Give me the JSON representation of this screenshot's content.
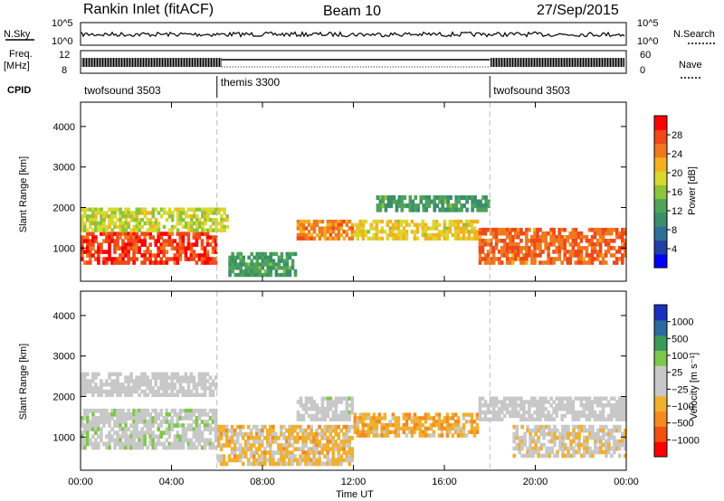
{
  "header": {
    "station": "Rankin Inlet (fitACF)",
    "beam": "Beam 10",
    "date": "27/Sep/2015"
  },
  "top_panels": {
    "nsky_label": "N.Sky",
    "nsky_ticks": [
      "10^5",
      "10^0"
    ],
    "nsearch_ticks": [
      "10^5",
      "10^0"
    ],
    "nsearch_label": "N.Search",
    "freq_label_line1": "Freq.",
    "freq_label_line2": "[MHz]",
    "freq_ticks": [
      "12",
      "8"
    ],
    "nave_ticks": [
      "60",
      "0"
    ],
    "nave_label": "Nave",
    "cpid_label": "CPID"
  },
  "modes": [
    {
      "name": "twofsound 3503",
      "start_hour": 0
    },
    {
      "name": "themis 3300",
      "start_hour": 6
    },
    {
      "name": "twofsound 3503",
      "start_hour": 18
    }
  ],
  "x_axis": {
    "label": "Time UT",
    "ticks": [
      "00:00",
      "04:00",
      "08:00",
      "12:00",
      "16:00",
      "20:00",
      "00:00"
    ],
    "range_hours": [
      0,
      24
    ]
  },
  "chart_data": [
    {
      "type": "heatmap",
      "title": "Power",
      "ylabel": "Slant Range [km]",
      "yticks": [
        "1000",
        "2000",
        "3000",
        "4000"
      ],
      "ylim": [
        180,
        4600
      ],
      "colorbar_label": "Power [dB]",
      "colorbar_ticks": [
        "28",
        "24",
        "20",
        "16",
        "12",
        "8",
        "4"
      ],
      "colorbar_range": [
        0,
        32
      ],
      "colors": [
        "#0000ff",
        "#2040a0",
        "#306e9a",
        "#3a8f6a",
        "#4fa35a",
        "#8cc43a",
        "#d8d830",
        "#f5b020",
        "#f07820",
        "#f04818",
        "#ff0000"
      ],
      "regions": [
        {
          "t": [
            0.0,
            6.0
          ],
          "r": [
            600,
            1400
          ],
          "value": 28
        },
        {
          "t": [
            0.0,
            6.5
          ],
          "r": [
            1400,
            2000
          ],
          "value": 18
        },
        {
          "t": [
            9.5,
            12.0
          ],
          "r": [
            1200,
            1700
          ],
          "value": 24
        },
        {
          "t": [
            12.0,
            17.5
          ],
          "r": [
            1200,
            1700
          ],
          "value": 20
        },
        {
          "t": [
            17.5,
            24.0
          ],
          "r": [
            600,
            1500
          ],
          "value": 26
        },
        {
          "t": [
            6.5,
            9.5
          ],
          "r": [
            300,
            900
          ],
          "value": 12
        },
        {
          "t": [
            13.0,
            18.0
          ],
          "r": [
            1900,
            2300
          ],
          "value": 12
        }
      ]
    },
    {
      "type": "heatmap",
      "title": "Velocity",
      "ylabel": "Slant Range [km]",
      "yticks": [
        "1000",
        "2000",
        "3000",
        "4000"
      ],
      "ylim": [
        180,
        4600
      ],
      "colorbar_label": "Velocity [m s⁻¹]",
      "colorbar_ticks": [
        "1000",
        "500",
        "100",
        "25",
        "−25",
        "−100",
        "−500",
        "−1000"
      ],
      "colorbar_range": [
        -1200,
        1200
      ],
      "colors": [
        "#ff0000",
        "#f05010",
        "#f58a20",
        "#f0b030",
        "#c8c8c8",
        "#c8c8c8",
        "#7dc84a",
        "#3a9a5a",
        "#2a6aa0",
        "#1a30c0"
      ],
      "regions": [
        {
          "t": [
            0.0,
            6.0
          ],
          "r": [
            700,
            1700
          ],
          "value": 100
        },
        {
          "t": [
            0.0,
            6.0
          ],
          "r": [
            2000,
            2600
          ],
          "value": 0
        },
        {
          "t": [
            6.0,
            12.0
          ],
          "r": [
            300,
            1300
          ],
          "value": -300
        },
        {
          "t": [
            12.0,
            17.5
          ],
          "r": [
            1000,
            1600
          ],
          "value": -400
        },
        {
          "t": [
            17.5,
            24.0
          ],
          "r": [
            1400,
            2000
          ],
          "value": 0
        },
        {
          "t": [
            19.0,
            24.0
          ],
          "r": [
            500,
            1300
          ],
          "value": -150
        },
        {
          "t": [
            9.5,
            12.0
          ],
          "r": [
            1400,
            2000
          ],
          "value": 50
        }
      ]
    }
  ]
}
